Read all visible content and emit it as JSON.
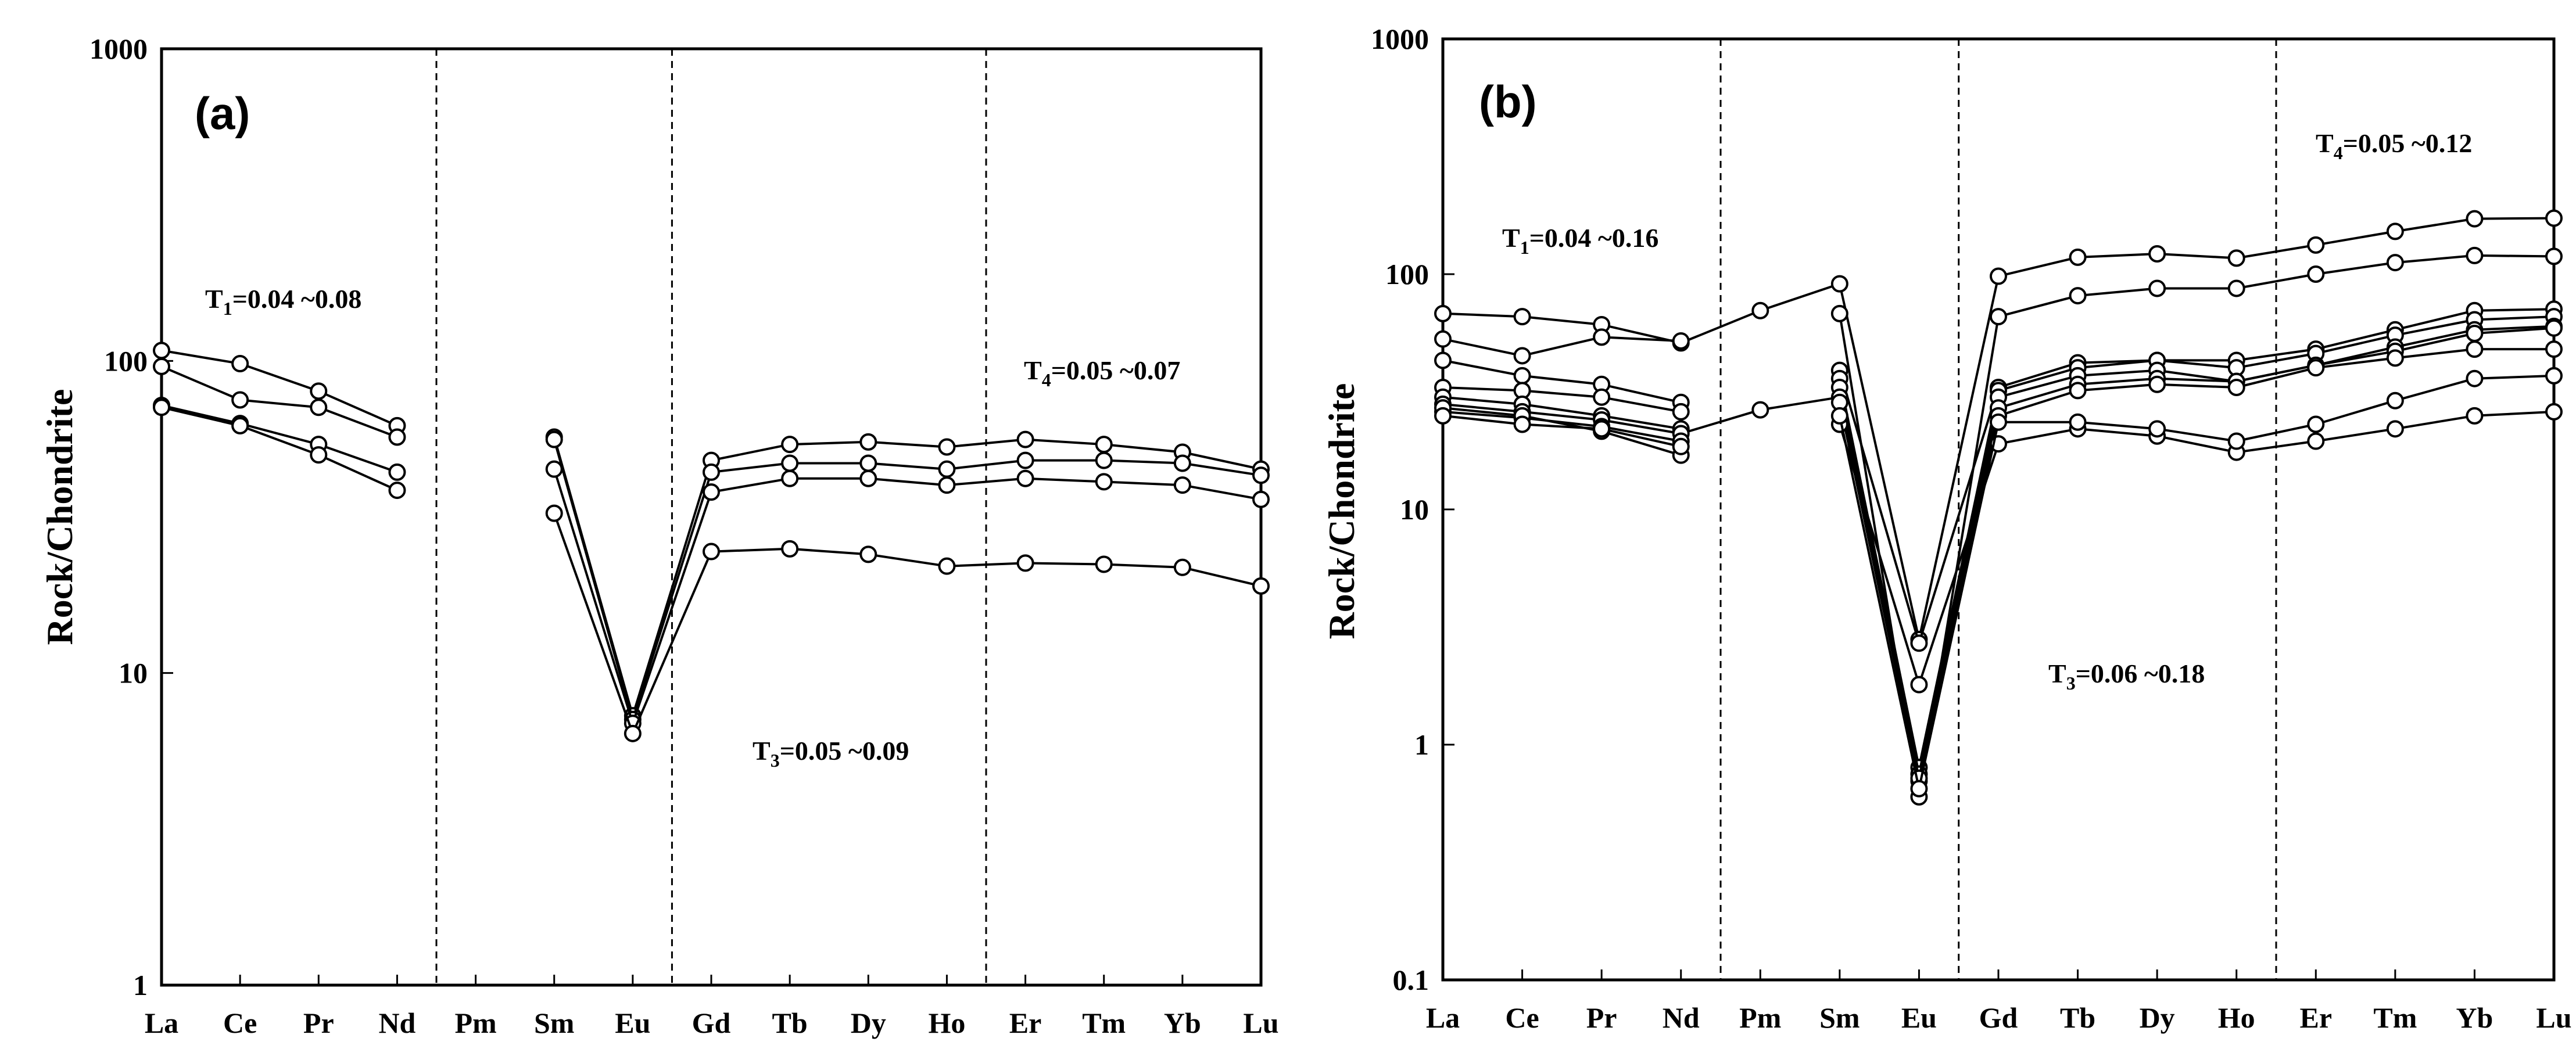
{
  "chart_data": [
    {
      "type": "line",
      "panel_label": "(a)",
      "ylabel": "Rock/Chondrite",
      "xlabel": "",
      "yscale": "log",
      "ylim": [
        1,
        1000
      ],
      "y_ticks": [
        "1",
        "10",
        "100",
        "1000"
      ],
      "grid": false,
      "categories": [
        "La",
        "Ce",
        "Pr",
        "Nd",
        "Pm",
        "Sm",
        "Eu",
        "Gd",
        "Tb",
        "Dy",
        "Ho",
        "Er",
        "Tm",
        "Yb",
        "Lu"
      ],
      "divider_after": [
        "Nd",
        "Eu",
        "Ho"
      ],
      "annotations": [
        {
          "main": "T",
          "sub": "1",
          "text": "=0.04 ~0.08"
        },
        {
          "main": "T",
          "sub": "4",
          "text": "=0.05 ~0.07"
        },
        {
          "main": "T",
          "sub": "3",
          "text": "=0.05 ~0.09"
        }
      ],
      "series": [
        {
          "values": [
            108,
            98,
            80,
            62,
            null,
            57,
            7.3,
            48,
            54,
            55,
            53,
            56,
            54,
            51,
            45
          ]
        },
        {
          "values": [
            96,
            75,
            71,
            57,
            null,
            56,
            7.1,
            44,
            47,
            47,
            45,
            48,
            48,
            47,
            43
          ]
        },
        {
          "values": [
            72,
            63,
            54,
            44,
            null,
            45,
            6.9,
            38,
            42,
            42,
            40,
            42,
            41,
            40,
            36
          ]
        },
        {
          "values": [
            71,
            62,
            50,
            38.5,
            null,
            32.5,
            6.4,
            24.5,
            25,
            24,
            22,
            22.5,
            22.3,
            21.8,
            19
          ]
        }
      ]
    },
    {
      "type": "line",
      "panel_label": "(b)",
      "ylabel": "Rock/Chondrite",
      "xlabel": "",
      "yscale": "log",
      "ylim": [
        0.1,
        1000
      ],
      "y_ticks": [
        "0.1",
        "1",
        "10",
        "100",
        "1000"
      ],
      "grid": false,
      "categories": [
        "La",
        "Ce",
        "Pr",
        "Nd",
        "Pm",
        "Sm",
        "Eu",
        "Gd",
        "Tb",
        "Dy",
        "Ho",
        "Er",
        "Tm",
        "Yb",
        "Lu"
      ],
      "divider_after": [
        "Nd",
        "Eu",
        "Ho"
      ],
      "annotations": [
        {
          "main": "T",
          "sub": "1",
          "text": "=0.04 ~0.16"
        },
        {
          "main": "T",
          "sub": "4",
          "text": "=0.05 ~0.12"
        },
        {
          "main": "T",
          "sub": "3",
          "text": "=0.06 ~0.18"
        }
      ],
      "series": [
        {
          "values": [
            68,
            66,
            61,
            51,
            70,
            91,
            2.8,
            98,
            118,
            122,
            117,
            133,
            152,
            172,
            173
          ]
        },
        {
          "values": [
            53,
            45,
            54,
            52,
            null,
            68,
            0.6,
            66,
            81,
            87,
            87,
            100,
            112,
            120,
            119
          ]
        },
        {
          "values": [
            43,
            37,
            34,
            28.5,
            null,
            39,
            2.7,
            33,
            42,
            43,
            43,
            48,
            58,
            70,
            71
          ]
        },
        {
          "values": [
            33,
            32,
            30,
            26,
            null,
            36,
            0.8,
            32,
            40,
            43,
            40,
            46,
            55,
            64,
            66
          ]
        },
        {
          "values": [
            30,
            28,
            25,
            22,
            null,
            33,
            0.75,
            30,
            37,
            39,
            35,
            41,
            49,
            58,
            60
          ]
        },
        {
          "values": [
            28,
            26,
            24,
            21,
            26.5,
            30,
            0.7,
            27,
            34,
            36,
            35,
            41,
            47,
            56,
            59
          ]
        },
        {
          "values": [
            26,
            24.5,
            22.5,
            19.5,
            null,
            28.5,
            0.72,
            25,
            32,
            34,
            33,
            40,
            44,
            48,
            48
          ]
        },
        {
          "values": [
            27,
            25,
            21.5,
            17,
            null,
            23,
            1.8,
            19,
            22,
            20.5,
            17.5,
            19.5,
            22,
            25,
            26
          ]
        },
        {
          "values": [
            25,
            23,
            22,
            18.5,
            null,
            25,
            0.65,
            23.5,
            23.5,
            22,
            19.5,
            23,
            29,
            36,
            37
          ]
        }
      ]
    }
  ]
}
